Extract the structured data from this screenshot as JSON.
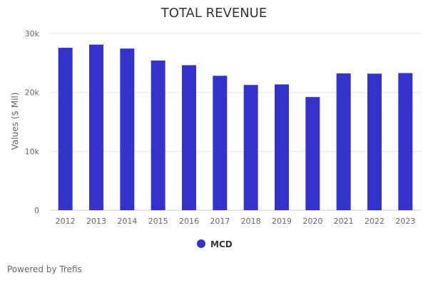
{
  "chart_data": {
    "type": "bar",
    "title": "TOTAL REVENUE",
    "xlabel": "",
    "ylabel": "Values ($ Mil)",
    "categories": [
      "2012",
      "2013",
      "2014",
      "2015",
      "2016",
      "2017",
      "2018",
      "2019",
      "2020",
      "2021",
      "2022",
      "2023"
    ],
    "series": [
      {
        "name": "MCD",
        "color": "#3333cc",
        "values": [
          27570,
          28110,
          27440,
          25410,
          24620,
          22820,
          21260,
          21360,
          19210,
          23220,
          23180,
          23280
        ]
      }
    ],
    "ylim": [
      0,
      30000
    ],
    "yticks": [
      0,
      10000,
      20000,
      30000
    ],
    "ytick_labels": [
      "0",
      "10k",
      "20k",
      "30k"
    ],
    "grid": true,
    "legend_position": "bottom-center"
  },
  "credit": "Powered by Trefis"
}
